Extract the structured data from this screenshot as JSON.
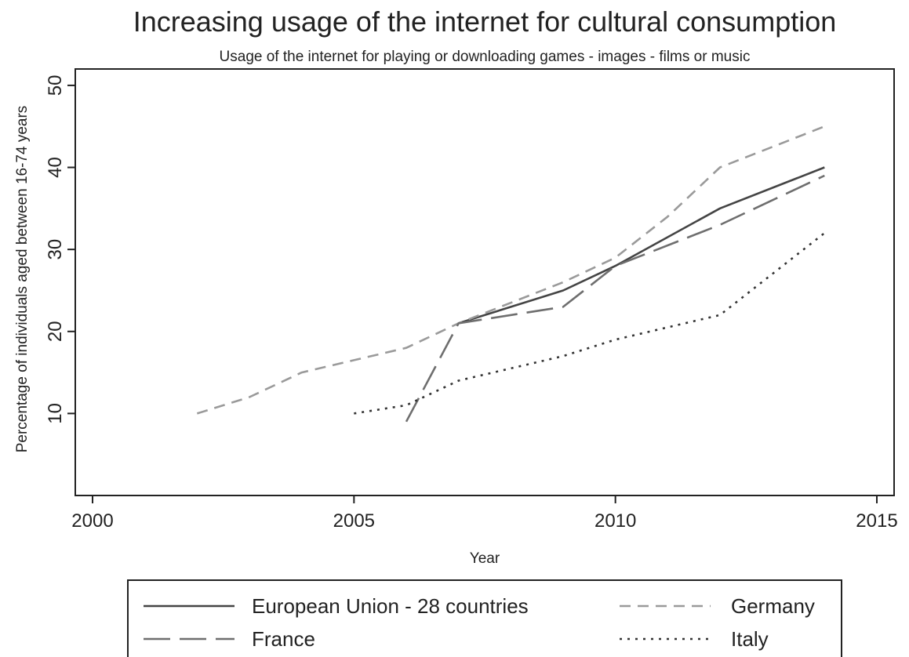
{
  "chart_data": {
    "type": "line",
    "title": "Increasing usage of the internet for cultural consumption",
    "subtitle": "Usage of the internet for playing or downloading games - images - films or music",
    "xlabel": "Year",
    "ylabel": "Percentage of individuals aged between 16-74 years",
    "xlim": [
      2000,
      2015
    ],
    "ylim": [
      0,
      52
    ],
    "xticks": [
      2000,
      2005,
      2010,
      2015
    ],
    "yticks": [
      10,
      20,
      30,
      40,
      50
    ],
    "grid": false,
    "legend_position": "bottom",
    "series": [
      {
        "name": "European Union - 28 countries",
        "color": "#444444",
        "dash": "solid",
        "x": [
          2007,
          2009,
          2010,
          2012,
          2014
        ],
        "y": [
          21,
          25,
          28,
          35,
          40
        ]
      },
      {
        "name": "Germany",
        "color": "#9a9a9a",
        "dash": "dashed",
        "x": [
          2002,
          2003,
          2004,
          2005,
          2006,
          2007,
          2008,
          2009,
          2010,
          2011,
          2012,
          2013,
          2014
        ],
        "y": [
          10,
          12,
          15,
          16.5,
          18,
          21,
          23.5,
          26,
          29,
          34,
          40,
          42.5,
          45
        ]
      },
      {
        "name": "France",
        "color": "#6e6e6e",
        "dash": "longdash",
        "x": [
          2006,
          2007,
          2009,
          2010,
          2012,
          2014
        ],
        "y": [
          9,
          21,
          23,
          28,
          33,
          39
        ]
      },
      {
        "name": "Italy",
        "color": "#333333",
        "dash": "dotted",
        "x": [
          2005,
          2006,
          2007,
          2009,
          2010,
          2012,
          2014
        ],
        "y": [
          10,
          11,
          14,
          17,
          19,
          22,
          32
        ]
      }
    ]
  }
}
